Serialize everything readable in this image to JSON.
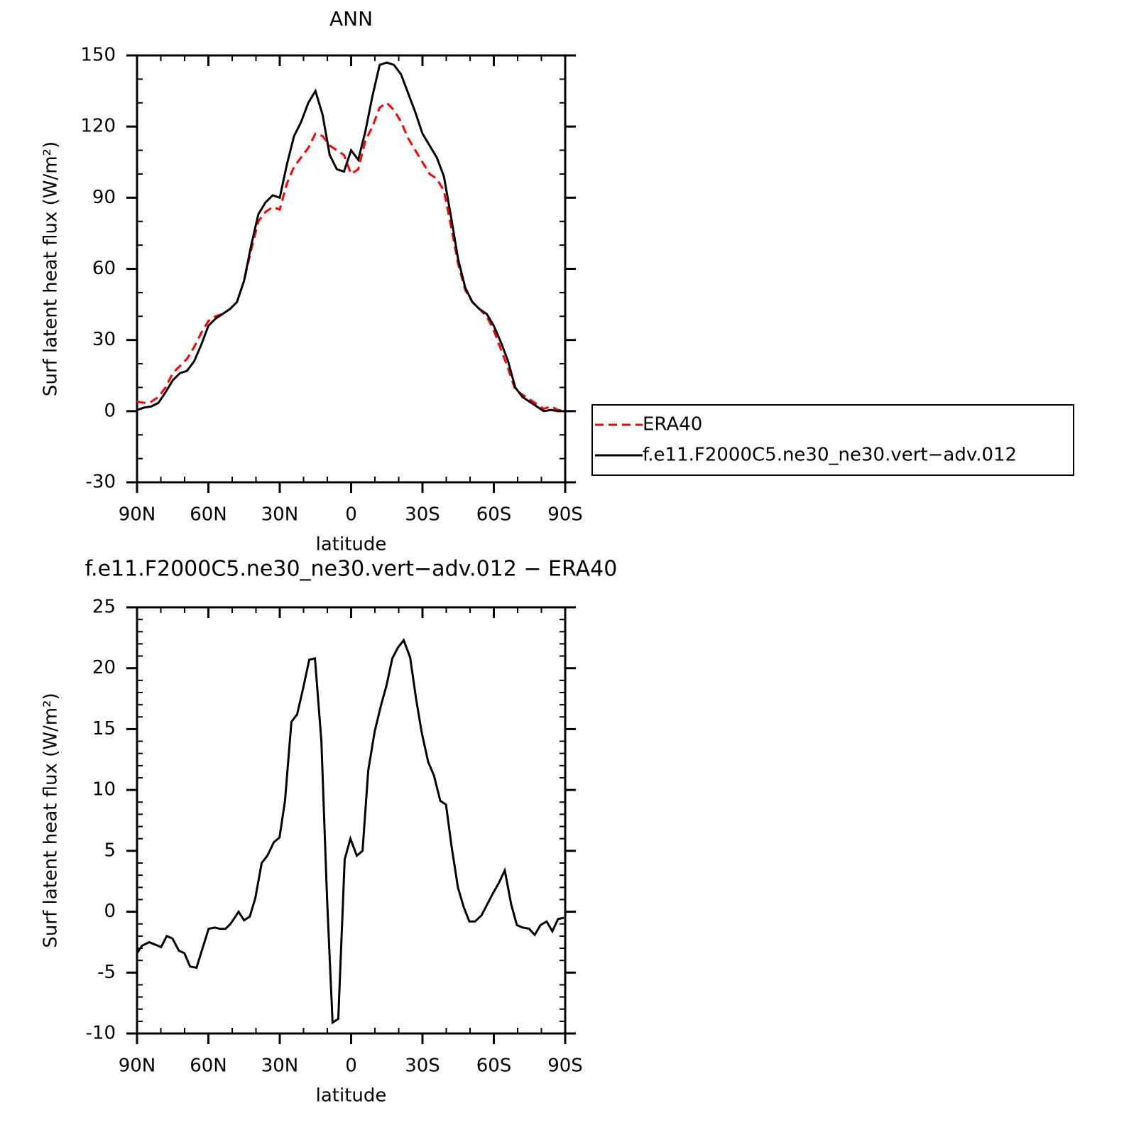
{
  "chart_data": [
    {
      "type": "line",
      "title": "ANN",
      "xlabel": "latitude",
      "ylabel": "Surf latent heat flux (W/m²)",
      "xlim": [
        90,
        -90
      ],
      "xticks": [
        {
          "value": 90,
          "label": "90N"
        },
        {
          "value": 60,
          "label": "60N"
        },
        {
          "value": 30,
          "label": "30N"
        },
        0,
        {
          "value": -30,
          "label": "30S"
        },
        {
          "value": -60,
          "label": "60S"
        },
        {
          "value": -90,
          "label": "90S"
        }
      ],
      "minor_xticks": [
        80,
        70,
        50,
        40,
        20,
        10,
        -10,
        -20,
        -40,
        -50,
        -70,
        -80
      ],
      "ylim": [
        -30,
        150
      ],
      "yticks": [
        -30,
        0,
        30,
        60,
        90,
        120,
        150
      ],
      "minor_yticks": [
        -20,
        -10,
        10,
        20,
        40,
        50,
        70,
        80,
        100,
        110,
        130,
        140
      ],
      "legend": "right",
      "x": [
        90,
        87,
        84,
        81,
        78,
        75,
        72,
        69,
        66,
        63,
        60,
        57,
        54,
        51,
        48,
        45,
        42,
        39,
        36,
        33,
        30,
        27,
        24,
        21,
        18,
        15,
        12,
        9,
        6,
        3,
        0,
        -3,
        -6,
        -9,
        -12,
        -15,
        -18,
        -21,
        -24,
        -27,
        -30,
        -33,
        -36,
        -39,
        -42,
        -45,
        -48,
        -51,
        -54,
        -57,
        -60,
        -63,
        -66,
        -69,
        -72,
        -75,
        -78,
        -81,
        -84,
        -87,
        -90
      ],
      "series": [
        {
          "name": "ERA40",
          "color": "#ff0000",
          "linestyle": "dashed",
          "values": [
            4,
            3.5,
            4,
            6,
            10,
            16,
            19,
            22,
            27,
            33,
            38,
            40,
            41,
            43,
            46,
            55,
            68,
            80,
            84,
            86,
            85,
            96,
            103,
            107,
            111,
            117,
            116,
            112,
            110,
            108,
            100,
            102,
            114,
            120,
            128,
            130,
            127,
            122,
            115,
            110,
            105,
            100,
            98,
            93,
            78,
            62,
            51,
            46,
            43,
            40,
            34,
            26,
            18,
            9,
            7,
            5,
            3,
            1,
            2,
            0.5,
            0
          ]
        },
        {
          "name": "f.e11.F2000C5.ne30_ne30.vert−adv.012",
          "color": "#000000",
          "linestyle": "solid",
          "values": [
            0.5,
            1.5,
            2,
            3.5,
            8,
            13,
            16,
            17,
            21,
            28,
            36,
            39,
            41,
            43,
            46,
            55,
            70,
            83,
            88,
            91,
            90,
            104,
            116,
            122,
            130,
            135,
            125,
            108,
            102,
            101,
            110,
            106,
            118,
            133,
            146,
            147,
            146,
            142,
            134,
            126,
            117,
            112,
            107,
            99,
            82,
            64,
            52,
            46,
            43,
            41,
            36,
            29,
            21,
            10,
            6,
            4,
            2,
            0,
            0.5,
            0,
            0
          ]
        }
      ]
    },
    {
      "type": "line",
      "title": "f.e11.F2000C5.ne30_ne30.vert−adv.012 − ERA40",
      "xlabel": "latitude",
      "ylabel": "Surf latent heat flux (W/m²)",
      "xlim": [
        90,
        -90
      ],
      "xticks": [
        {
          "value": 90,
          "label": "90N"
        },
        {
          "value": 60,
          "label": "60N"
        },
        {
          "value": 30,
          "label": "30N"
        },
        0,
        {
          "value": -30,
          "label": "30S"
        },
        {
          "value": -60,
          "label": "60S"
        },
        {
          "value": -90,
          "label": "90S"
        }
      ],
      "minor_xticks": [
        80,
        70,
        50,
        40,
        20,
        10,
        -10,
        -20,
        -40,
        -50,
        -70,
        -80
      ],
      "ylim": [
        -10,
        25
      ],
      "yticks": [
        -10,
        -5,
        0,
        5,
        10,
        15,
        20,
        25
      ],
      "minor_yticks": [
        -9,
        -8,
        -7,
        -6,
        -4,
        -3,
        -2,
        -1,
        1,
        2,
        3,
        4,
        6,
        7,
        8,
        9,
        11,
        12,
        13,
        14,
        16,
        17,
        18,
        19,
        21,
        22,
        23,
        24
      ],
      "color": "#000000",
      "x": [
        90,
        87.9,
        84.9,
        79.9,
        77.5,
        75.1,
        72.4,
        70.1,
        67.7,
        65,
        59.9,
        57.3,
        55.2,
        52.8,
        50.7,
        47.3,
        45,
        42.6,
        40.3,
        37.6,
        35.2,
        32.5,
        30.1,
        27.8,
        25.1,
        22.7,
        20,
        17.6,
        15.2,
        12.5,
        10.1,
        7.8,
        5.4,
        2.7,
        0.3,
        -2.4,
        -4.8,
        -7.2,
        -9.9,
        -12.5,
        -14.9,
        -17.3,
        -19.7,
        -22.1,
        -24.8,
        -27.3,
        -29.7,
        -32.4,
        -34.8,
        -37.5,
        -39.9,
        -42.2,
        -44.9,
        -47.3,
        -49.7,
        -52.1,
        -54.8,
        -57.2,
        -59.6,
        -62.2,
        -64.6,
        -67.3,
        -69.7,
        -72.1,
        -74.8,
        -77.2,
        -79.6,
        -82.2,
        -84.6,
        -87,
        -89.4
      ],
      "values": [
        -3.4,
        -2.8,
        -2.5,
        -2.9,
        -2,
        -2.2,
        -3.2,
        -3.4,
        -4.5,
        -4.6,
        -1.4,
        -1.3,
        -1.4,
        -1.4,
        -1,
        0,
        -0.7,
        -0.4,
        1.1,
        4,
        4.6,
        5.7,
        6.1,
        9.1,
        15.6,
        16.2,
        18.5,
        20.7,
        20.8,
        14,
        1,
        -9.1,
        -8.8,
        4.3,
        6,
        4.6,
        5,
        11.6,
        14.8,
        16.9,
        18.6,
        20.8,
        21.7,
        22.3,
        20.9,
        17.5,
        14.7,
        12.3,
        11.2,
        9.1,
        8.8,
        5.4,
        2,
        0.4,
        -0.8,
        -0.8,
        -0.3,
        0.6,
        1.5,
        2.4,
        3.4,
        0.6,
        -1.1,
        -1.3,
        -1.4,
        -1.9,
        -1.1,
        -0.8,
        -1.6,
        -0.6,
        -0.5
      ]
    }
  ]
}
